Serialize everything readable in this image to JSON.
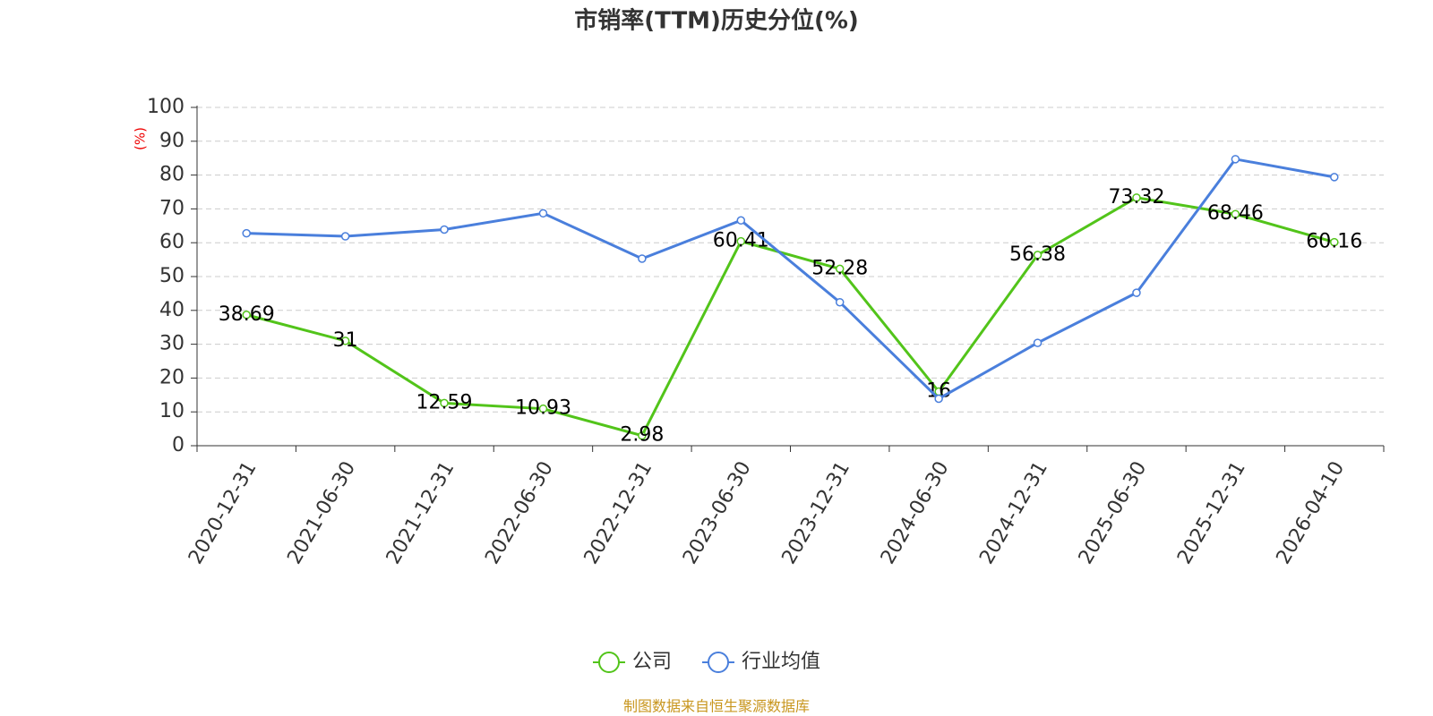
{
  "chart_data": {
    "type": "line",
    "title": "市销率(TTM)历史分位(%)",
    "y_label": "(%)",
    "categories": [
      "2020-12-31",
      "2021-06-30",
      "2021-12-31",
      "2022-06-30",
      "2022-12-31",
      "2023-06-30",
      "2023-12-31",
      "2024-06-30",
      "2024-12-31",
      "2025-06-30",
      "2025-12-31",
      "2026-04-10"
    ],
    "series": [
      {
        "name": "公司",
        "color": "#52c41a",
        "show_labels": true,
        "values": [
          38.69,
          31,
          12.59,
          10.93,
          2.98,
          60.41,
          52.28,
          16,
          56.38,
          73.32,
          68.46,
          60.16
        ]
      },
      {
        "name": "行业均值",
        "color": "#4a7fdc",
        "show_labels": false,
        "values": [
          62.8,
          61.9,
          63.9,
          68.7,
          55.3,
          66.6,
          42.4,
          13.9,
          30.4,
          45.2,
          84.7,
          79.4
        ]
      }
    ],
    "ylim": [
      0,
      100
    ],
    "yticks": [
      0,
      10,
      20,
      30,
      40,
      50,
      60,
      70,
      80,
      90,
      100
    ],
    "grid": true,
    "legend": "bottom",
    "source": "制图数据来自恒生聚源数据库"
  }
}
